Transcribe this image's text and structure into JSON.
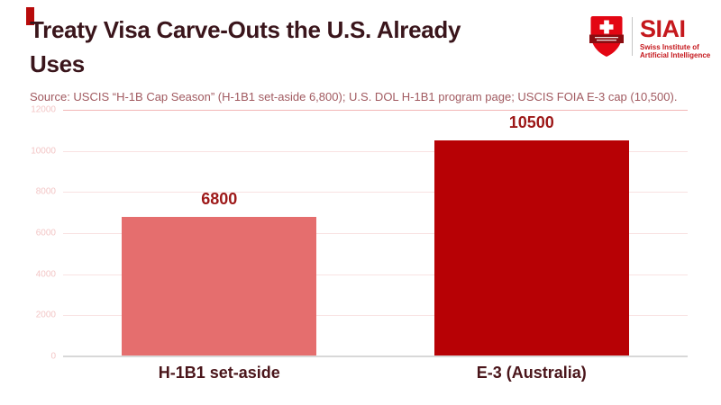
{
  "header": {
    "title_line1": "Treaty Visa Carve-Outs the U.S. Already",
    "title_line2": "Uses",
    "source": "Source: USCIS “H-1B Cap Season” (H-1B1 set-aside 6,800); U.S. DOL H-1B1 program page; USCIS FOIA E-3 cap (10,500).",
    "accent_color": "#b80b0b"
  },
  "logo": {
    "acronym": "SIAI",
    "tagline_line1": "Swiss Institute of",
    "tagline_line2": "Artificial Intelligence",
    "shield_color": "#e30613",
    "banner_color": "#8a0c10",
    "text_color": "#c5181d"
  },
  "chart_data": {
    "type": "bar",
    "title": "Treaty Visa Carve-Outs the U.S. Already Uses",
    "categories": [
      "H-1B1 set-aside",
      "E-3 (Australia)"
    ],
    "values": [
      6800,
      10500
    ],
    "value_labels": [
      "6800",
      "10500"
    ],
    "bar_colors": [
      "#e56e6e",
      "#b70105"
    ],
    "y_ticks": [
      12000,
      10000,
      8000,
      6000,
      4000,
      2000,
      0
    ],
    "ylim": [
      0,
      12000
    ],
    "grid": true,
    "legend_position": "none",
    "xlabel": "",
    "ylabel": ""
  }
}
